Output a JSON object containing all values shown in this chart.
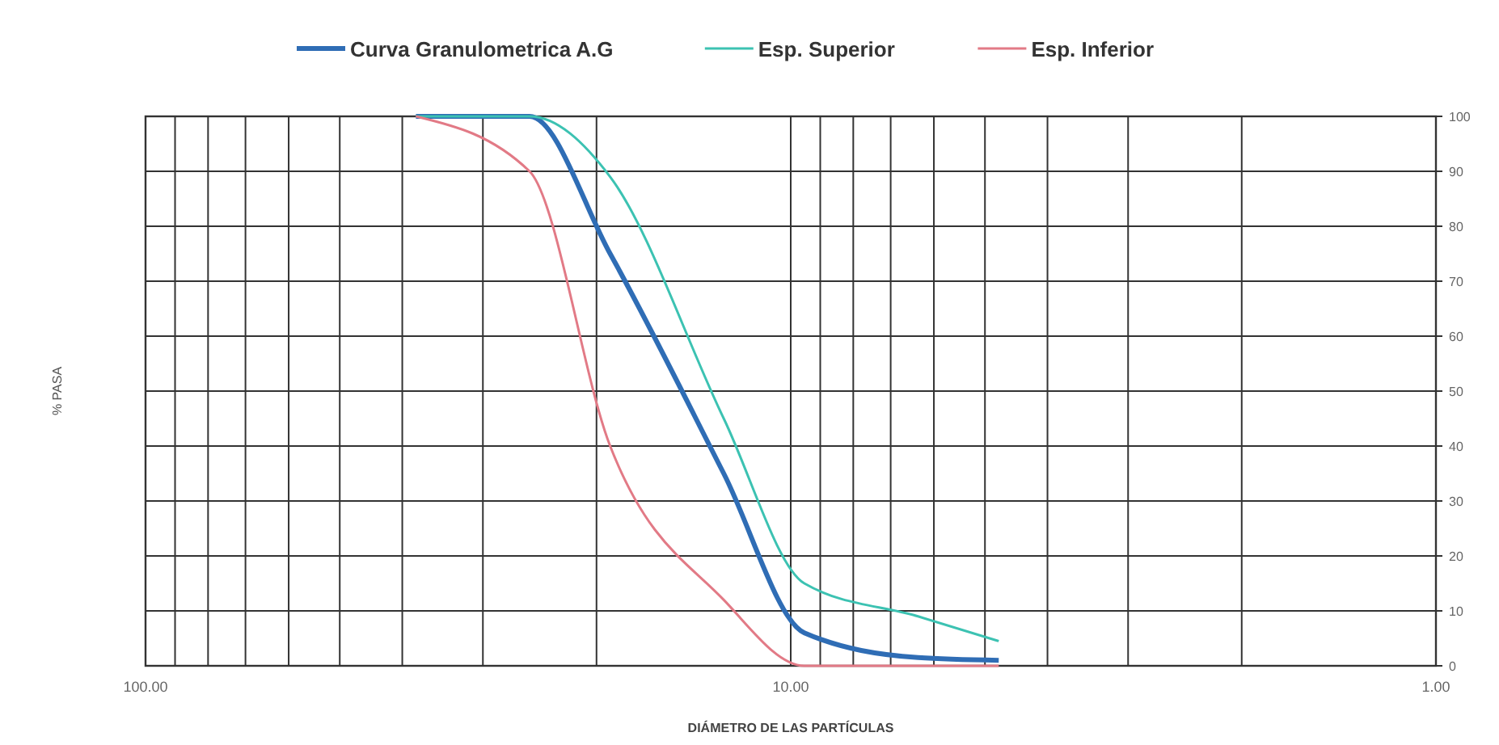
{
  "chart_data": {
    "type": "line",
    "xlabel": "DIÁMETRO DE LAS PARTÍCULAS",
    "ylabel": "% PASA",
    "x": [
      38.1,
      25.4,
      19.05,
      12.7,
      9.525,
      6.35,
      4.76
    ],
    "series": [
      {
        "name": "Curva Granulometrica A.G",
        "color": "#2f6db5",
        "values": [
          100,
          100,
          75,
          35,
          6,
          1.5,
          1
        ]
      },
      {
        "name": "Esp. Superior",
        "color": "#3cc2b2",
        "values": [
          100,
          100,
          89,
          45,
          15,
          9,
          4.5
        ]
      },
      {
        "name": "Esp. Inferior",
        "color": "#e27a86",
        "values": [
          100,
          90,
          40,
          12,
          0,
          0,
          0
        ]
      }
    ],
    "log": "x",
    "xlim": [
      100,
      1
    ],
    "ylim": [
      0,
      100
    ],
    "xticks": [
      {
        "value": 100,
        "label": "100.00"
      },
      {
        "value": 90,
        "label": null
      },
      {
        "value": 80,
        "label": null
      },
      {
        "value": 70,
        "label": null
      },
      {
        "value": 60,
        "label": null
      },
      {
        "value": 50,
        "label": null
      },
      {
        "value": 40,
        "label": null
      },
      {
        "value": 30,
        "label": null
      },
      {
        "value": 20,
        "label": null
      },
      {
        "value": 10,
        "label": "10.00"
      },
      {
        "value": 9,
        "label": null
      },
      {
        "value": 8,
        "label": null
      },
      {
        "value": 7,
        "label": null
      },
      {
        "value": 6,
        "label": null
      },
      {
        "value": 5,
        "label": null
      },
      {
        "value": 4,
        "label": null
      },
      {
        "value": 3,
        "label": null
      },
      {
        "value": 2,
        "label": null
      },
      {
        "value": 1,
        "label": "1.00"
      }
    ],
    "yticks": [
      0,
      10,
      20,
      30,
      40,
      50,
      60,
      70,
      80,
      90,
      100
    ],
    "grid": true,
    "legend": "top",
    "marker": "none",
    "line_style": "solid"
  }
}
